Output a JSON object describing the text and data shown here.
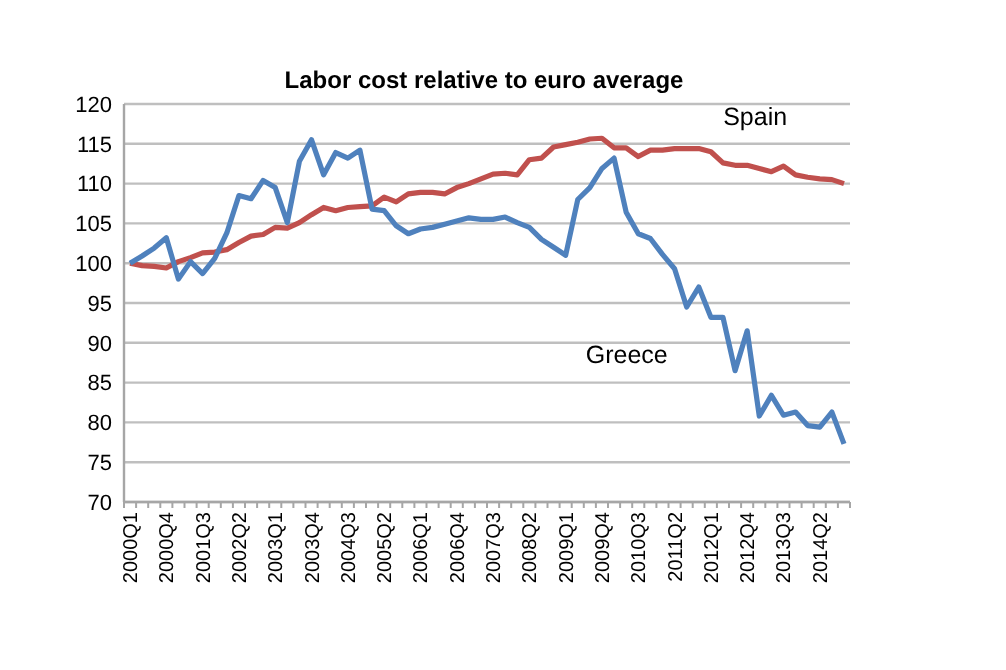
{
  "chart_data": {
    "type": "line",
    "title": "Labor cost relative to euro average",
    "categories": [
      "2000Q1",
      null,
      null,
      "2000Q4",
      null,
      null,
      "2001Q3",
      null,
      null,
      "2002Q2",
      null,
      null,
      "2003Q1",
      null,
      null,
      "2003Q4",
      null,
      null,
      "2004Q3",
      null,
      null,
      "2005Q2",
      null,
      null,
      "2006Q1",
      null,
      null,
      "2006Q4",
      null,
      null,
      "2007Q3",
      null,
      null,
      "2008Q2",
      null,
      null,
      "2009Q1",
      null,
      null,
      "2009Q4",
      null,
      null,
      "2010Q3",
      null,
      null,
      "2011Q2",
      null,
      null,
      "2012Q1",
      null,
      null,
      "2012Q4",
      null,
      null,
      "2013Q3",
      null,
      null,
      "2014Q2",
      null,
      null
    ],
    "series": [
      {
        "name": "Spain",
        "color": "#c0504d",
        "values": [
          100,
          99.7,
          99.6,
          99.4,
          100.2,
          100.7,
          101.3,
          101.4,
          101.7,
          102.6,
          103.4,
          103.6,
          104.5,
          104.4,
          105.1,
          106.1,
          107,
          106.6,
          107,
          107.1,
          107.2,
          108.3,
          107.7,
          108.7,
          108.9,
          108.9,
          108.7,
          109.5,
          110,
          110.6,
          111.2,
          111.3,
          111.1,
          113,
          113.2,
          114.6,
          114.9,
          115.2,
          115.6,
          115.7,
          114.5,
          114.5,
          113.4,
          114.2,
          114.2,
          114.4,
          114.4,
          114.4,
          114,
          112.6,
          112.3,
          112.3,
          111.9,
          111.5,
          112.2,
          111.1,
          110.8,
          110.6,
          110.5,
          110
        ]
      },
      {
        "name": "Greece",
        "color": "#4f81bd",
        "values": [
          100,
          100.9,
          101.9,
          103.2,
          98,
          100.2,
          98.7,
          100.6,
          103.8,
          108.5,
          108.1,
          110.4,
          109.5,
          105.1,
          112.8,
          115.5,
          111.1,
          113.9,
          113.2,
          114.2,
          106.8,
          106.6,
          104.7,
          103.7,
          104.3,
          104.5,
          104.9,
          105.3,
          105.7,
          105.5,
          105.5,
          105.8,
          105.1,
          104.5,
          103,
          102,
          101,
          108,
          109.5,
          111.9,
          113.2,
          106.4,
          103.7,
          103.1,
          101.1,
          99.3,
          94.5,
          97,
          93.2,
          93.2,
          86.5,
          91.5,
          80.8,
          83.4,
          80.9,
          81.3,
          79.6,
          79.4,
          81.3,
          77.3
        ]
      }
    ],
    "ylim": [
      70,
      120
    ],
    "yticks": [
      70,
      75,
      80,
      85,
      90,
      95,
      100,
      105,
      110,
      115,
      120
    ],
    "grid": "y",
    "marker": "none",
    "line_style": "solid"
  }
}
